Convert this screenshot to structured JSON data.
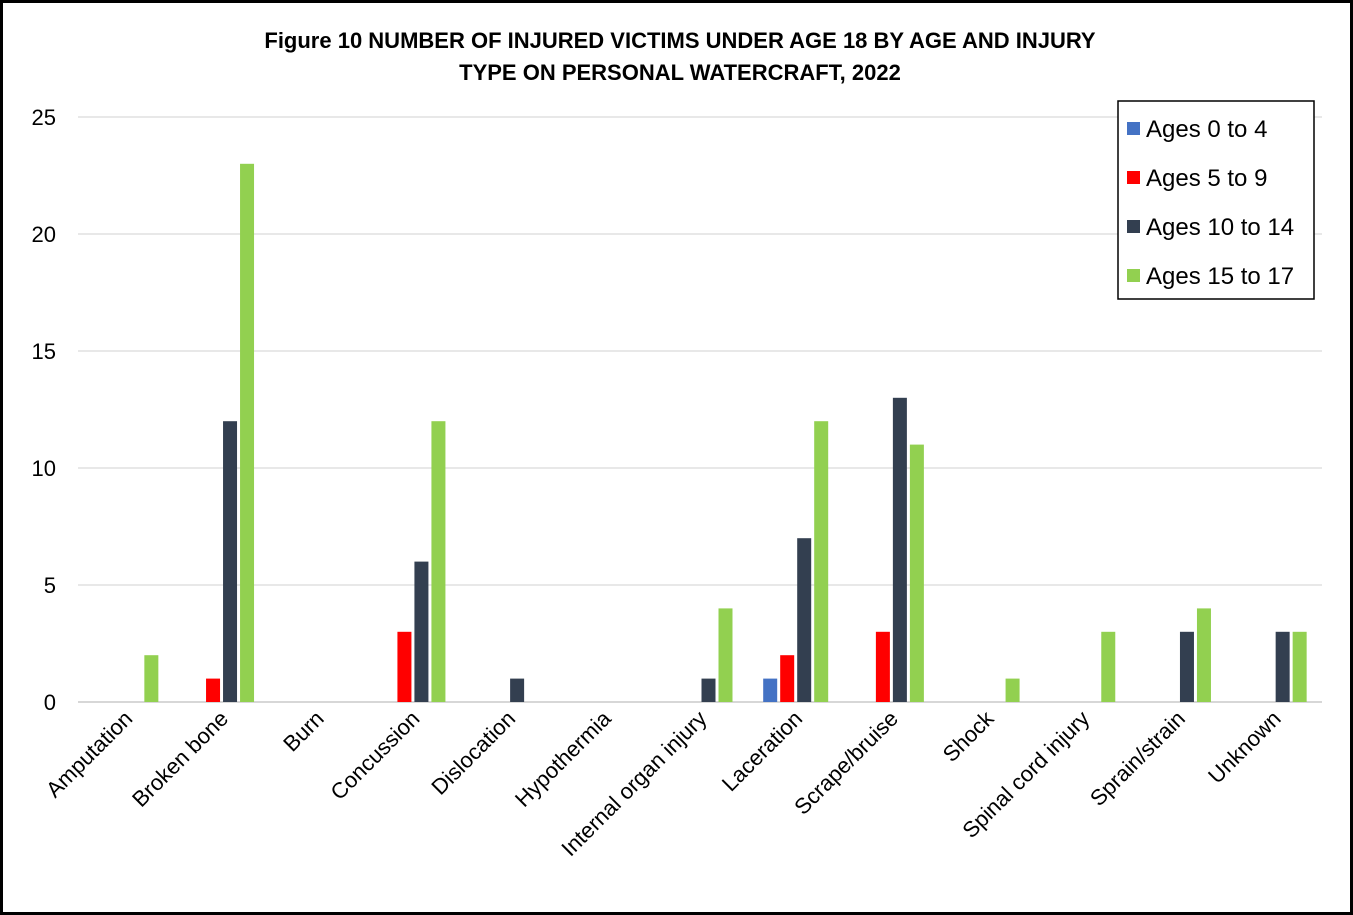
{
  "chart_data": {
    "type": "bar",
    "title_line1": "Figure 10 NUMBER OF INJURED VICTIMS UNDER AGE 18 BY AGE AND INJURY",
    "title_line2": "TYPE ON PERSONAL WATERCRAFT, 2022",
    "xlabel": "",
    "ylabel": "",
    "ylim": [
      0,
      25
    ],
    "yticks": [
      0,
      5,
      10,
      15,
      20,
      25
    ],
    "grid": true,
    "legend_position": "top-right",
    "categories": [
      "Amputation",
      "Broken bone",
      "Burn",
      "Concussion",
      "Dislocation",
      "Hypothermia",
      "Internal organ injury",
      "Laceration",
      "Scrape/bruise",
      "Shock",
      "Spinal cord injury",
      "Sprain/strain",
      "Unknown"
    ],
    "series": [
      {
        "name": "Ages 0 to 4",
        "color": "#4472C4",
        "values": [
          0,
          0,
          0,
          0,
          0,
          0,
          0,
          1,
          0,
          0,
          0,
          0,
          0
        ]
      },
      {
        "name": "Ages 5 to 9",
        "color": "#FF0000",
        "values": [
          0,
          1,
          0,
          3,
          0,
          0,
          0,
          2,
          3,
          0,
          0,
          0,
          0
        ]
      },
      {
        "name": "Ages 10 to 14",
        "color": "#333F50",
        "values": [
          0,
          12,
          0,
          6,
          1,
          0,
          1,
          7,
          13,
          0,
          0,
          3,
          3
        ]
      },
      {
        "name": "Ages 15 to 17",
        "color": "#92D050",
        "values": [
          2,
          23,
          0,
          12,
          0,
          0,
          4,
          12,
          11,
          1,
          3,
          4,
          3
        ]
      }
    ]
  }
}
